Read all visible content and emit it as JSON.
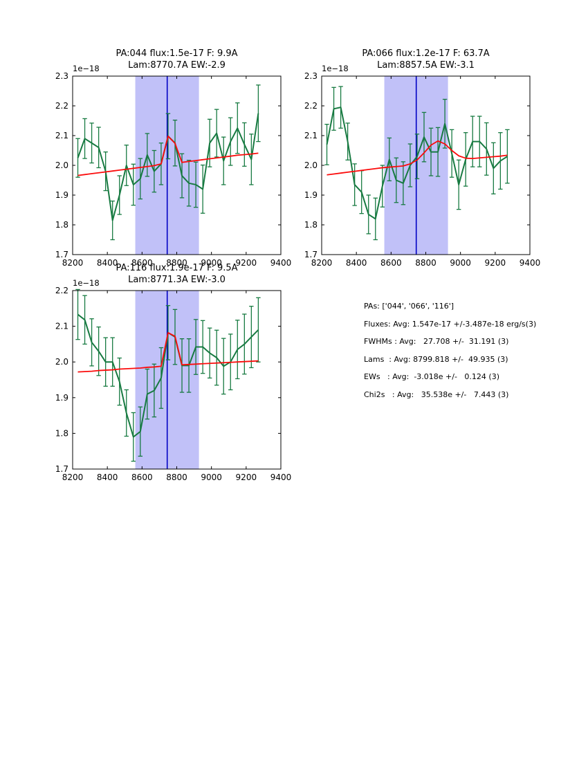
{
  "colors": {
    "data_line": "#177a41",
    "fit_line": "#fb0b0b",
    "vline": "#0000c4",
    "band": "#c1c1f8",
    "axis": "#000000"
  },
  "stats_panel": {
    "lines": [
      "PAs: ['044', '066', '116']",
      "Fluxes: Avg: 1.547e-17 +/-3.487e-18 erg/s(3)",
      "FWHMs : Avg:   27.708 +/-  31.191 (3)",
      "Lams  : Avg: 8799.818 +/-  49.935 (3)",
      "EWs   : Avg:  -3.018e +/-   0.124 (3)",
      "Chi2s   : Avg:   35.538e +/-   7.443 (3)"
    ]
  },
  "chart_data": [
    {
      "type": "line",
      "title_line1": "PA:044 flux:1.5e-17 F: 9.9A",
      "title_line2": "Lam:8770.7A EW:-2.9",
      "offset_label": "1e−18",
      "xlabel": "",
      "ylabel": "",
      "xlim": [
        8200,
        9400
      ],
      "ylim": [
        1.7,
        2.3
      ],
      "xticks": [
        8200,
        8400,
        8600,
        8800,
        9000,
        9200,
        9400
      ],
      "yticks": [
        1.7,
        1.8,
        1.9,
        2.0,
        2.1,
        2.2,
        2.3
      ],
      "band": [
        8561,
        8928
      ],
      "vline": 8745,
      "x": [
        8230,
        8270,
        8310,
        8350,
        8390,
        8430,
        8470,
        8510,
        8550,
        8590,
        8630,
        8670,
        8710,
        8750,
        8790,
        8830,
        8870,
        8910,
        8950,
        8990,
        9030,
        9070,
        9110,
        9150,
        9190,
        9230,
        9270
      ],
      "y": [
        2.025,
        2.09,
        2.075,
        2.06,
        1.98,
        1.815,
        1.9,
        2.0,
        1.935,
        1.955,
        2.035,
        1.98,
        2.005,
        2.098,
        2.075,
        1.965,
        1.94,
        1.935,
        1.92,
        2.075,
        2.108,
        2.015,
        2.08,
        2.125,
        2.07,
        2.02,
        2.175
      ],
      "yerr": [
        0.065,
        0.067,
        0.067,
        0.068,
        0.065,
        0.065,
        0.065,
        0.068,
        0.069,
        0.068,
        0.072,
        0.07,
        0.07,
        0.076,
        0.077,
        0.074,
        0.077,
        0.076,
        0.081,
        0.08,
        0.08,
        0.08,
        0.08,
        0.085,
        0.073,
        0.085,
        0.095
      ],
      "fit_y": [
        1.966,
        1.969,
        1.972,
        1.975,
        1.978,
        1.981,
        1.984,
        1.987,
        1.99,
        1.993,
        1.996,
        1.999,
        2.005,
        2.098,
        2.074,
        2.01,
        2.013,
        2.016,
        2.019,
        2.022,
        2.025,
        2.028,
        2.031,
        2.034,
        2.036,
        2.038,
        2.041
      ]
    },
    {
      "type": "line",
      "title_line1": "PA:066 flux:1.2e-17 F: 63.7A",
      "title_line2": "Lam:8857.5A EW:-3.1",
      "offset_label": "1e−18",
      "xlabel": "",
      "ylabel": "",
      "xlim": [
        8200,
        9400
      ],
      "ylim": [
        1.7,
        2.3
      ],
      "xticks": [
        8200,
        8400,
        8600,
        8800,
        9000,
        9200,
        9400
      ],
      "yticks": [
        1.7,
        1.8,
        1.9,
        2.0,
        2.1,
        2.2,
        2.3
      ],
      "band": [
        8561,
        8928
      ],
      "vline": 8745,
      "x": [
        8230,
        8270,
        8310,
        8350,
        8390,
        8430,
        8470,
        8510,
        8550,
        8590,
        8630,
        8670,
        8710,
        8750,
        8790,
        8830,
        8870,
        8910,
        8950,
        8990,
        9030,
        9070,
        9110,
        9150,
        9190,
        9230,
        9270
      ],
      "y": [
        2.07,
        2.19,
        2.195,
        2.08,
        1.935,
        1.91,
        1.835,
        1.82,
        1.93,
        2.02,
        1.95,
        1.94,
        2.0,
        2.03,
        2.095,
        2.045,
        2.045,
        2.14,
        2.04,
        1.935,
        2.02,
        2.08,
        2.08,
        2.055,
        1.99,
        2.015,
        2.03
      ],
      "yerr": [
        0.068,
        0.072,
        0.07,
        0.062,
        0.07,
        0.072,
        0.065,
        0.07,
        0.07,
        0.072,
        0.075,
        0.072,
        0.072,
        0.075,
        0.083,
        0.08,
        0.082,
        0.082,
        0.08,
        0.083,
        0.09,
        0.085,
        0.085,
        0.088,
        0.086,
        0.095,
        0.09
      ],
      "fit_y": [
        1.968,
        1.971,
        1.974,
        1.977,
        1.98,
        1.983,
        1.986,
        1.989,
        1.992,
        1.994,
        1.996,
        1.998,
        2.005,
        2.018,
        2.042,
        2.068,
        2.082,
        2.072,
        2.05,
        2.032,
        2.024,
        2.023,
        2.025,
        2.027,
        2.029,
        2.031,
        2.034
      ]
    },
    {
      "type": "line",
      "title_line1": "PA:116 flux:1.9e-17 F: 9.5A",
      "title_line2": "Lam:8771.3A EW:-3.0",
      "offset_label": "1e−18",
      "xlabel": "",
      "ylabel": "",
      "xlim": [
        8200,
        9400
      ],
      "ylim": [
        1.7,
        2.2
      ],
      "xticks": [
        8200,
        8400,
        8600,
        8800,
        9000,
        9200,
        9400
      ],
      "yticks": [
        1.7,
        1.8,
        1.9,
        2.0,
        2.1,
        2.2
      ],
      "band": [
        8561,
        8928
      ],
      "vline": 8745,
      "x": [
        8230,
        8270,
        8310,
        8350,
        8390,
        8430,
        8470,
        8510,
        8550,
        8590,
        8630,
        8670,
        8710,
        8750,
        8790,
        8830,
        8870,
        8910,
        8950,
        8990,
        9030,
        9070,
        9110,
        9150,
        9190,
        9230,
        9270
      ],
      "y": [
        2.133,
        2.118,
        2.055,
        2.03,
        2.0,
        2.0,
        1.945,
        1.857,
        1.79,
        1.805,
        1.91,
        1.92,
        1.955,
        2.082,
        2.07,
        1.99,
        1.99,
        2.042,
        2.042,
        2.025,
        2.012,
        1.988,
        2.0,
        2.035,
        2.05,
        2.07,
        2.09
      ],
      "yerr": [
        0.07,
        0.068,
        0.066,
        0.068,
        0.068,
        0.068,
        0.066,
        0.065,
        0.068,
        0.069,
        0.07,
        0.074,
        0.085,
        0.076,
        0.077,
        0.075,
        0.075,
        0.077,
        0.074,
        0.07,
        0.077,
        0.078,
        0.078,
        0.082,
        0.084,
        0.086,
        0.09
      ],
      "fit_y": [
        1.972,
        1.973,
        1.974,
        1.976,
        1.977,
        1.978,
        1.98,
        1.981,
        1.982,
        1.983,
        1.985,
        1.986,
        1.988,
        2.082,
        2.072,
        1.992,
        1.993,
        1.994,
        1.995,
        1.996,
        1.997,
        1.998,
        1.999,
        2.0,
        2.001,
        2.002,
        2.003
      ]
    }
  ]
}
